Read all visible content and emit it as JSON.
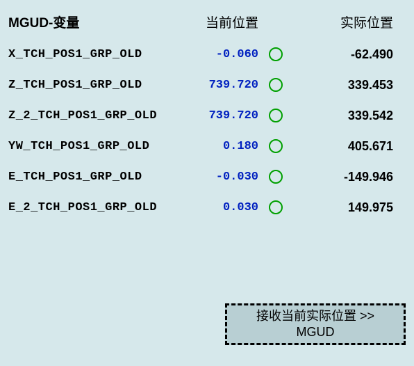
{
  "headers": {
    "variable": "MGUD-变量",
    "current": "当前位置",
    "actual": "实际位置"
  },
  "rows": [
    {
      "name": "X_TCH_POS1_GRP_OLD",
      "current": "-0.060",
      "actual": "-62.490",
      "indicator_color": "#00a000"
    },
    {
      "name": "Z_TCH_POS1_GRP_OLD",
      "current": "739.720",
      "actual": "339.453",
      "indicator_color": "#00a000"
    },
    {
      "name": "Z_2_TCH_POS1_GRP_OLD",
      "current": "739.720",
      "actual": "339.542",
      "indicator_color": "#00a000"
    },
    {
      "name": "YW_TCH_POS1_GRP_OLD",
      "current": "0.180",
      "actual": "405.671",
      "indicator_color": "#00a000"
    },
    {
      "name": "E_TCH_POS1_GRP_OLD",
      "current": "-0.030",
      "actual": "-149.946",
      "indicator_color": "#00a000"
    },
    {
      "name": "E_2_TCH_POS1_GRP_OLD",
      "current": "0.030",
      "actual": "149.975",
      "indicator_color": "#00a000"
    }
  ],
  "button": {
    "line1": "接收当前实际位置 >>",
    "line2": "MGUD"
  },
  "colors": {
    "background": "#d6e8eb",
    "current_value": "#0020c0",
    "button_bg": "#b8cfd3",
    "text": "#000000"
  }
}
